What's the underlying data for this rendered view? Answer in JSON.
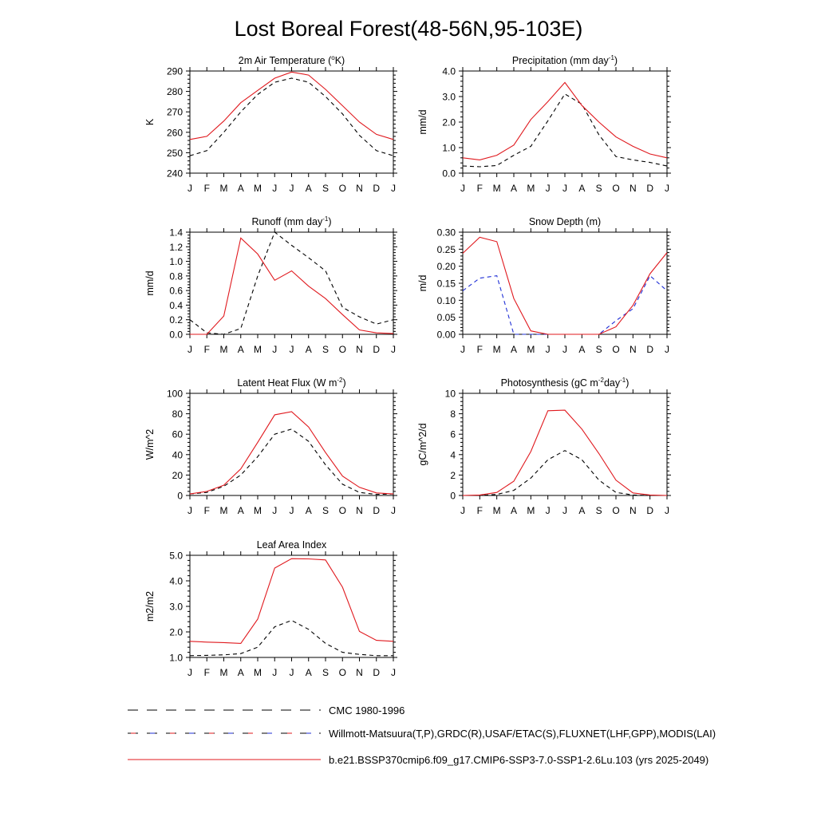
{
  "page_title": "Lost Boreal Forest(48-56N,95-103E)",
  "months": [
    "J",
    "F",
    "M",
    "A",
    "M",
    "J",
    "J",
    "A",
    "S",
    "O",
    "N",
    "D",
    "J"
  ],
  "colors": {
    "obs": "#000000",
    "model": "#e0191e",
    "snow_obs": "#1f2fd6"
  },
  "legend": [
    {
      "label": "CMC 1980-1996",
      "style": "dashed",
      "color": "#000000"
    },
    {
      "label": "Willmott-Matsuura(T,P),GRDC(R),USAF/ETAC(S),FLUXNET(LHF,GPP),MODIS(LAI)",
      "style": "dashed-mixed",
      "color": "#000000"
    },
    {
      "label": "b.e21.BSSP370cmip6.f09_g17.CMIP6-SSP3-7.0-SSP1-2.6Lu.103 (yrs 2025-2049)",
      "style": "solid",
      "color": "#e0191e"
    }
  ],
  "chart_data": [
    {
      "type": "line",
      "title": "2m Air Temperature (°K)",
      "ylabel": "K",
      "ylim": [
        240,
        290
      ],
      "yticks": [
        240,
        250,
        260,
        270,
        280,
        290
      ],
      "ytick_labels": [
        "240",
        "250",
        "260",
        "270",
        "280",
        "290"
      ],
      "x": [
        "J",
        "F",
        "M",
        "A",
        "M",
        "J",
        "J",
        "A",
        "S",
        "O",
        "N",
        "D",
        "J"
      ],
      "series": [
        {
          "values": [
            248.5,
            251,
            260,
            270,
            278.5,
            284.5,
            286.5,
            284.5,
            277.5,
            269,
            258.5,
            251,
            248.5
          ],
          "color": "#000000",
          "dash": "dashed"
        },
        {
          "values": [
            256.5,
            258,
            265.5,
            274.5,
            280.5,
            286.5,
            289.5,
            288,
            281,
            273,
            265,
            259,
            256.5
          ],
          "color": "#e0191e",
          "dash": "solid"
        }
      ]
    },
    {
      "type": "line",
      "title": "Precipitation (mm day-1)",
      "ylabel": "mm/d",
      "ylim": [
        0,
        4
      ],
      "yticks": [
        0,
        1,
        2,
        3,
        4
      ],
      "ytick_labels": [
        "0.0",
        "1.0",
        "2.0",
        "3.0",
        "4.0"
      ],
      "x": [
        "J",
        "F",
        "M",
        "A",
        "M",
        "J",
        "J",
        "A",
        "S",
        "O",
        "N",
        "D",
        "J"
      ],
      "series": [
        {
          "values": [
            0.28,
            0.25,
            0.3,
            0.7,
            1.05,
            2.05,
            3.1,
            2.7,
            1.5,
            0.65,
            0.52,
            0.42,
            0.28
          ],
          "color": "#000000",
          "dash": "dashed"
        },
        {
          "values": [
            0.6,
            0.52,
            0.7,
            1.1,
            2.1,
            2.8,
            3.55,
            2.65,
            2.0,
            1.42,
            1.05,
            0.75,
            0.6
          ],
          "color": "#e0191e",
          "dash": "solid"
        }
      ]
    },
    {
      "type": "line",
      "title": "Runoff (mm day-1)",
      "ylabel": "mm/d",
      "ylim": [
        0,
        1.4
      ],
      "yticks": [
        0,
        0.2,
        0.4,
        0.6,
        0.8,
        1.0,
        1.2,
        1.4
      ],
      "ytick_labels": [
        "0.0",
        "0.2",
        "0.4",
        "0.6",
        "0.8",
        "1.0",
        "1.2",
        "1.4"
      ],
      "x": [
        "J",
        "F",
        "M",
        "A",
        "M",
        "J",
        "J",
        "A",
        "S",
        "O",
        "N",
        "D",
        "J"
      ],
      "series": [
        {
          "values": [
            0.2,
            0.02,
            0.0,
            0.08,
            0.8,
            1.4,
            1.22,
            1.05,
            0.87,
            0.37,
            0.24,
            0.14,
            0.2
          ],
          "color": "#000000",
          "dash": "dashed"
        },
        {
          "values": [
            0.0,
            0.0,
            0.25,
            1.32,
            1.1,
            0.74,
            0.87,
            0.66,
            0.49,
            0.27,
            0.06,
            0.02,
            0.01
          ],
          "color": "#e0191e",
          "dash": "solid"
        }
      ]
    },
    {
      "type": "line",
      "title": "Snow Depth (m)",
      "ylabel": "m/d",
      "ylim": [
        0,
        0.3
      ],
      "yticks": [
        0,
        0.05,
        0.1,
        0.15,
        0.2,
        0.25,
        0.3
      ],
      "ytick_labels": [
        "0.00",
        "0.05",
        "0.10",
        "0.15",
        "0.20",
        "0.25",
        "0.30"
      ],
      "x": [
        "J",
        "F",
        "M",
        "A",
        "M",
        "J",
        "J",
        "A",
        "S",
        "O",
        "N",
        "D",
        "J"
      ],
      "series": [
        {
          "values": [
            0,
            0,
            0,
            0,
            0,
            0,
            0,
            0,
            0,
            0,
            0,
            0,
            0
          ],
          "color": "#000000",
          "dash": "dashed"
        },
        {
          "values": [
            0.128,
            0.165,
            0.172,
            0.0,
            0.0,
            0.0,
            0.0,
            0.0,
            0.0,
            0.04,
            0.075,
            0.172,
            0.128
          ],
          "color": "#1f2fd6",
          "dash": "dashed"
        },
        {
          "values": [
            0.238,
            0.285,
            0.272,
            0.105,
            0.01,
            0.0,
            0.0,
            0.0,
            0.0,
            0.022,
            0.085,
            0.178,
            0.24
          ],
          "color": "#e0191e",
          "dash": "solid"
        }
      ]
    },
    {
      "type": "line",
      "title": "Latent Heat Flux (W m-2)",
      "ylabel": "W/m^2",
      "ylim": [
        0,
        100
      ],
      "yticks": [
        0,
        20,
        40,
        60,
        80,
        100
      ],
      "ytick_labels": [
        "0",
        "20",
        "40",
        "60",
        "80",
        "100"
      ],
      "x": [
        "J",
        "F",
        "M",
        "A",
        "M",
        "J",
        "J",
        "A",
        "S",
        "O",
        "N",
        "D",
        "J"
      ],
      "series": [
        {
          "values": [
            1.5,
            3,
            9,
            20,
            38,
            60,
            65,
            53,
            30,
            11,
            3,
            1,
            1.5
          ],
          "color": "#000000",
          "dash": "dashed"
        },
        {
          "values": [
            1.5,
            4,
            10,
            26,
            52,
            79,
            82,
            67,
            42,
            19,
            8,
            2.5,
            1.5
          ],
          "color": "#e0191e",
          "dash": "solid"
        }
      ]
    },
    {
      "type": "line",
      "title": "Photosynthesis (gC m-2day-1)",
      "ylabel": "gC/m^2/d",
      "ylim": [
        0,
        10
      ],
      "yticks": [
        0,
        2,
        4,
        6,
        8,
        10
      ],
      "ytick_labels": [
        "0",
        "2",
        "4",
        "6",
        "8",
        "10"
      ],
      "x": [
        "J",
        "F",
        "M",
        "A",
        "M",
        "J",
        "J",
        "A",
        "S",
        "O",
        "N",
        "D",
        "J"
      ],
      "series": [
        {
          "values": [
            0,
            0,
            0.1,
            0.5,
            1.7,
            3.5,
            4.4,
            3.5,
            1.5,
            0.3,
            0.05,
            0,
            0
          ],
          "color": "#000000",
          "dash": "dashed"
        },
        {
          "values": [
            0,
            0.05,
            0.3,
            1.4,
            4.3,
            8.3,
            8.35,
            6.5,
            4.1,
            1.5,
            0.25,
            0.05,
            0
          ],
          "color": "#e0191e",
          "dash": "solid"
        }
      ]
    },
    {
      "type": "line",
      "title": "Leaf Area Index",
      "ylabel": "m2/m2",
      "ylim": [
        1,
        5
      ],
      "yticks": [
        1,
        2,
        3,
        4,
        5
      ],
      "ytick_labels": [
        "1.0",
        "2.0",
        "3.0",
        "4.0",
        "5.0"
      ],
      "x": [
        "J",
        "F",
        "M",
        "A",
        "M",
        "J",
        "J",
        "A",
        "S",
        "O",
        "N",
        "D",
        "J"
      ],
      "series": [
        {
          "values": [
            1.07,
            1.08,
            1.1,
            1.15,
            1.4,
            2.2,
            2.45,
            2.1,
            1.55,
            1.2,
            1.12,
            1.07,
            1.07
          ],
          "color": "#000000",
          "dash": "dashed"
        },
        {
          "values": [
            1.63,
            1.6,
            1.58,
            1.55,
            2.5,
            4.5,
            4.87,
            4.86,
            4.82,
            3.75,
            2.02,
            1.67,
            1.63
          ],
          "color": "#e0191e",
          "dash": "solid"
        }
      ]
    }
  ]
}
